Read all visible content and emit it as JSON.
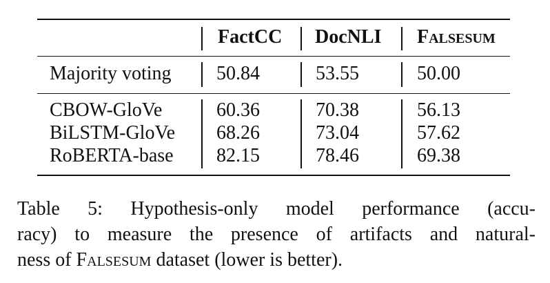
{
  "table": {
    "columns": [
      "",
      "FactCC",
      "DocNLI",
      "Falsesum"
    ],
    "rows": [
      {
        "model": "Majority voting",
        "factcc": "50.84",
        "docnli": "53.55",
        "falsesum": "50.00"
      },
      {
        "model": "CBOW-GloVe",
        "factcc": "60.36",
        "docnli": "70.38",
        "falsesum": "56.13"
      },
      {
        "model": "BiLSTM-GloVe",
        "factcc": "68.26",
        "docnli": "73.04",
        "falsesum": "57.62"
      },
      {
        "model": "RoBERTA-base",
        "factcc": "82.15",
        "docnli": "78.46",
        "falsesum": "69.38"
      }
    ]
  },
  "caption": {
    "line1": "Table 5:  Hypothesis-only model performance (accu-",
    "line2": "racy) to measure the presence of artifacts and natural-",
    "line3_pre": "ness of ",
    "line3_sc": "Falsesum",
    "line3_post": " dataset (lower is better)."
  }
}
